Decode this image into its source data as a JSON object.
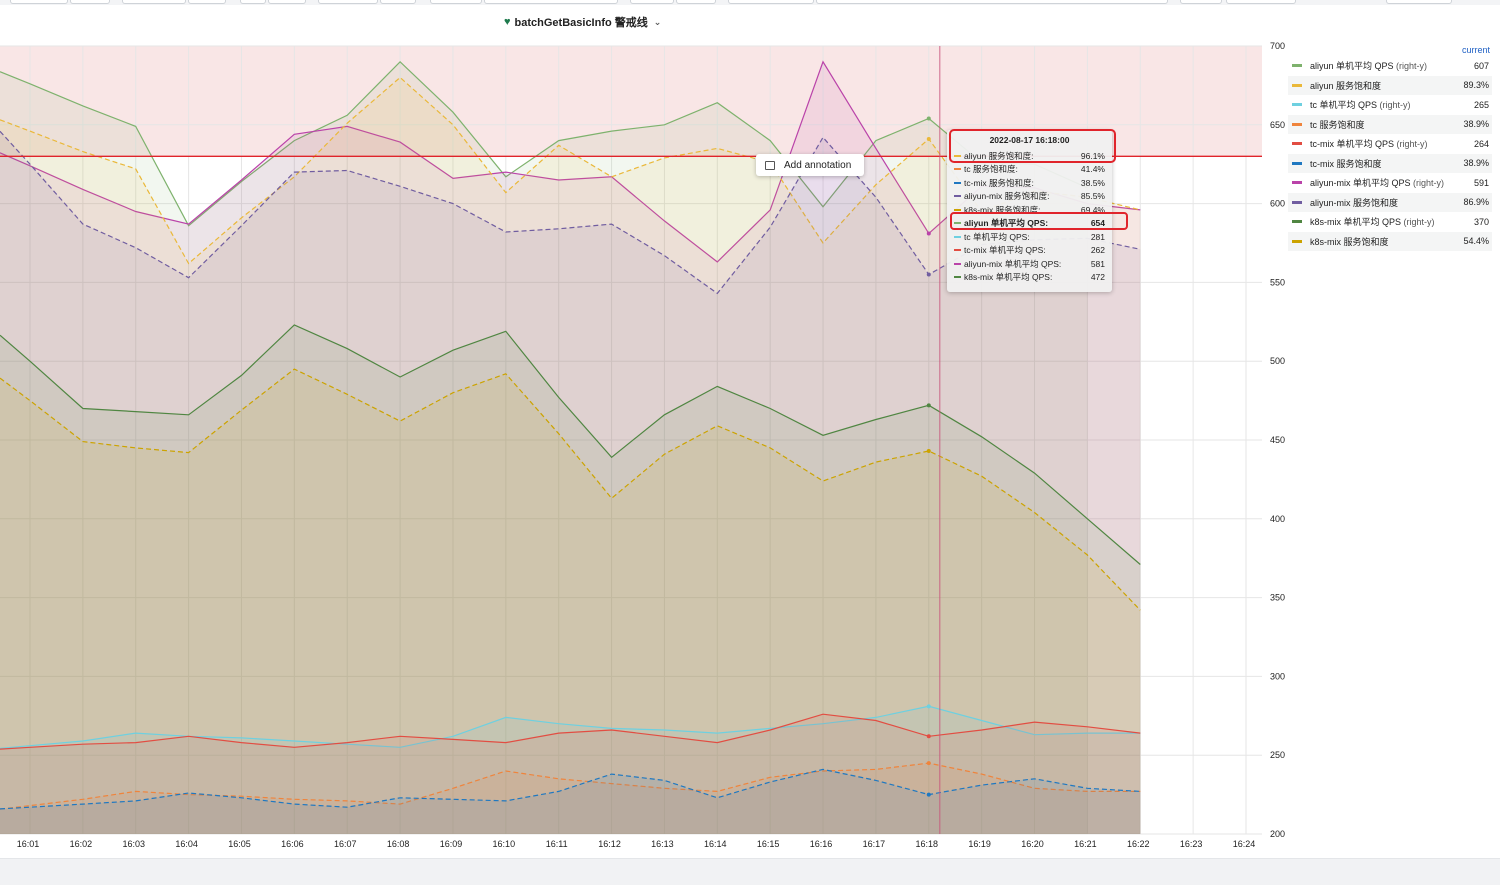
{
  "panel": {
    "title": "batchGetBasicInfo 警戒线"
  },
  "icons": {
    "title_icon": "heart-icon",
    "title_dropdown": "chevron-down-icon",
    "annotation_icon": "comment-icon"
  },
  "colors": {
    "threshold_line": "#e0242b",
    "threshold_fill": "#f7dede",
    "cursor": "#c8527a",
    "current_header": "#1f60c4",
    "highlight_box": "#e0242b"
  },
  "annotation": {
    "label": "Add annotation"
  },
  "legend": {
    "header": "current",
    "items": [
      {
        "name": "aliyun 单机平均 QPS",
        "suffix": "(right-y)",
        "value": "607",
        "color": "#7eb26d"
      },
      {
        "name": "aliyun 服务饱和度",
        "suffix": "",
        "value": "89.3%",
        "color": "#eab839"
      },
      {
        "name": "tc 单机平均 QPS",
        "suffix": "(right-y)",
        "value": "265",
        "color": "#6ed0e0"
      },
      {
        "name": "tc 服务饱和度",
        "suffix": "",
        "value": "38.9%",
        "color": "#ef843c"
      },
      {
        "name": "tc-mix 单机平均 QPS",
        "suffix": "(right-y)",
        "value": "264",
        "color": "#e24d42"
      },
      {
        "name": "tc-mix 服务饱和度",
        "suffix": "",
        "value": "38.9%",
        "color": "#1f78c1"
      },
      {
        "name": "aliyun-mix 单机平均 QPS",
        "suffix": "(right-y)",
        "value": "591",
        "color": "#ba43a9"
      },
      {
        "name": "aliyun-mix 服务饱和度",
        "suffix": "",
        "value": "86.9%",
        "color": "#705da0"
      },
      {
        "name": "k8s-mix 单机平均 QPS",
        "suffix": "(right-y)",
        "value": "370",
        "color": "#508642"
      },
      {
        "name": "k8s-mix 服务饱和度",
        "suffix": "",
        "value": "54.4%",
        "color": "#cca300"
      }
    ]
  },
  "tooltip": {
    "time": "2022-08-17 16:18:00",
    "rows": [
      {
        "name": "aliyun 服务饱和度:",
        "value": "96.1%",
        "color": "#eab839"
      },
      {
        "name": "tc 服务饱和度:",
        "value": "41.4%",
        "color": "#ef843c"
      },
      {
        "name": "tc-mix 服务饱和度:",
        "value": "38.5%",
        "color": "#1f78c1"
      },
      {
        "name": "aliyun-mix 服务饱和度:",
        "value": "85.5%",
        "color": "#705da0"
      },
      {
        "name": "k8s-mix 服务饱和度:",
        "value": "69.4%",
        "color": "#cca300"
      },
      {
        "name": "aliyun 单机平均 QPS:",
        "value": "654",
        "color": "#7eb26d"
      },
      {
        "name": "tc 单机平均 QPS:",
        "value": "281",
        "color": "#6ed0e0"
      },
      {
        "name": "tc-mix 单机平均 QPS:",
        "value": "262",
        "color": "#e24d42"
      },
      {
        "name": "aliyun-mix 单机平均 QPS:",
        "value": "581",
        "color": "#ba43a9"
      },
      {
        "name": "k8s-mix 单机平均 QPS:",
        "value": "472",
        "color": "#508642"
      }
    ]
  },
  "chart_data": {
    "type": "area",
    "title": "batchGetBasicInfo 警戒线",
    "x": [
      "16:01",
      "16:02",
      "16:03",
      "16:04",
      "16:05",
      "16:06",
      "16:07",
      "16:08",
      "16:09",
      "16:10",
      "16:11",
      "16:12",
      "16:13",
      "16:14",
      "16:15",
      "16:16",
      "16:17",
      "16:18",
      "16:19",
      "16:20",
      "16:21",
      "16:22",
      "16:23",
      "16:24"
    ],
    "x_tick_labels": [
      "16:01",
      "16:02",
      "16:03",
      "16:04",
      "16:05",
      "16:06",
      "16:07",
      "16:08",
      "16:09",
      "16:10",
      "16:11",
      "16:12",
      "16:13",
      "16:14",
      "16:15",
      "16:16",
      "16:17",
      "16:18",
      "16:19",
      "16:20",
      "16:21",
      "16:22",
      "16:23",
      "16:24"
    ],
    "right_y": {
      "ylim": [
        200,
        700
      ],
      "ticks": [
        200,
        250,
        300,
        350,
        400,
        450,
        500,
        550,
        600,
        650,
        700
      ]
    },
    "threshold": {
      "value": 630,
      "axis": "right-y"
    },
    "cursor_x": "16:18",
    "grid": true,
    "legend_position": "right",
    "series": [
      {
        "name": "aliyun 单机平均 QPS",
        "style": "solid",
        "color": "#7eb26d",
        "values": [
          676,
          662,
          649,
          586,
          614,
          640,
          656,
          690,
          658,
          617,
          640,
          646,
          650,
          664,
          640,
          598,
          640,
          654,
          626,
          625,
          610,
          null,
          null,
          null
        ]
      },
      {
        "name": "aliyun-mix 单机平均 QPS",
        "style": "solid",
        "color": "#ba43a9",
        "values": [
          624,
          609,
          595,
          587,
          615,
          644,
          649,
          639,
          616,
          620,
          615,
          617,
          589,
          563,
          596,
          690,
          635,
          581,
          611,
          610,
          600,
          596,
          null,
          null
        ]
      },
      {
        "name": "aliyun 服务饱和度 (scaled)",
        "style": "dashed",
        "color": "#eab839",
        "values": [
          646,
          633,
          622,
          562,
          591,
          617,
          651,
          680,
          650,
          607,
          637,
          617,
          629,
          635,
          626,
          575,
          612,
          641,
          595,
          608,
          604,
          596,
          null,
          null
        ]
      },
      {
        "name": "aliyun-mix 服务饱和度 (scaled)",
        "style": "dashed",
        "color": "#705da0",
        "values": [
          625,
          587,
          572,
          553,
          586,
          620,
          621,
          611,
          600,
          582,
          584,
          587,
          567,
          543,
          585,
          642,
          604,
          555,
          574,
          577,
          578,
          571,
          null,
          null
        ]
      },
      {
        "name": "k8s-mix 单机平均 QPS",
        "style": "solid",
        "color": "#508642",
        "values": [
          500,
          470,
          468,
          466,
          491,
          523,
          508,
          490,
          507,
          519,
          477,
          439,
          466,
          484,
          470,
          453,
          463,
          472,
          452,
          429,
          400,
          371,
          null,
          null
        ]
      },
      {
        "name": "k8s-mix 服务饱和度 (scaled)",
        "style": "dashed",
        "color": "#cca300",
        "values": [
          475,
          449,
          445,
          442,
          469,
          495,
          479,
          462,
          480,
          492,
          454,
          413,
          441,
          459,
          445,
          424,
          436,
          443,
          427,
          404,
          377,
          342,
          null,
          null
        ]
      },
      {
        "name": "tc 单机平均 QPS",
        "style": "solid",
        "color": "#6ed0e0",
        "values": [
          256,
          259,
          264,
          262,
          261,
          259,
          257,
          255,
          262,
          274,
          270,
          267,
          266,
          264,
          267,
          270,
          274,
          281,
          272,
          263,
          264,
          264,
          null,
          null
        ]
      },
      {
        "name": "tc-mix 单机平均 QPS",
        "style": "solid",
        "color": "#e24d42",
        "values": [
          255,
          257,
          258,
          262,
          258,
          255,
          258,
          262,
          260,
          258,
          264,
          266,
          262,
          258,
          266,
          276,
          272,
          262,
          266,
          271,
          268,
          264,
          null,
          null
        ]
      },
      {
        "name": "tc 服务饱和度 (scaled)",
        "style": "dashed",
        "color": "#ef843c",
        "values": [
          218,
          222,
          227,
          225,
          224,
          222,
          221,
          219,
          229,
          240,
          235,
          232,
          229,
          227,
          236,
          240,
          241,
          245,
          238,
          229,
          227,
          227,
          null,
          null
        ]
      },
      {
        "name": "tc-mix 服务饱和度 (scaled)",
        "style": "dashed",
        "color": "#1f78c1",
        "values": [
          217,
          219,
          221,
          226,
          223,
          219,
          217,
          223,
          222,
          221,
          227,
          238,
          234,
          223,
          233,
          241,
          234,
          225,
          231,
          235,
          229,
          227,
          null,
          null
        ]
      }
    ]
  }
}
